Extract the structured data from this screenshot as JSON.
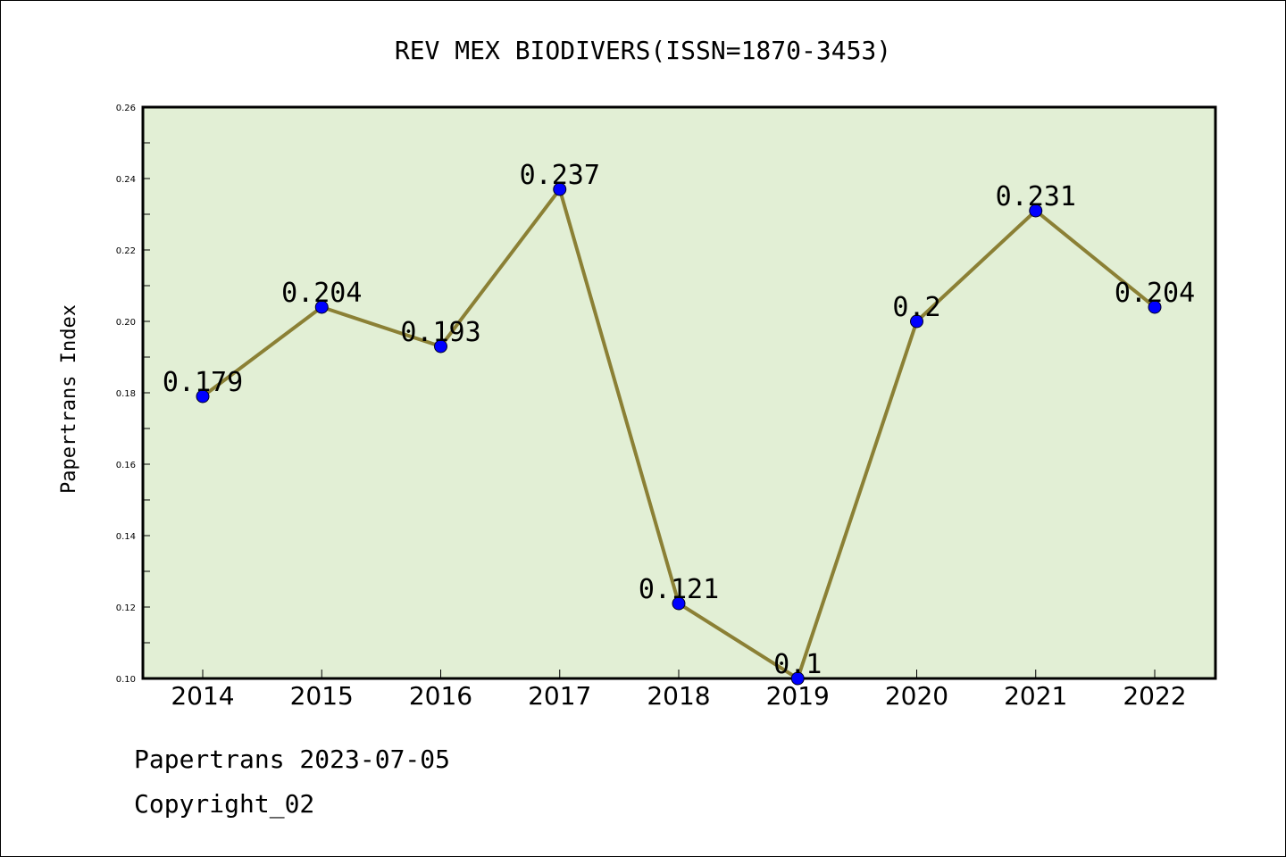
{
  "chart_data": {
    "type": "line",
    "title": "REV MEX BIODIVERS(ISSN=1870-3453)",
    "ylabel": "Papertrans Index",
    "xlabel": "",
    "categories": [
      "2014",
      "2015",
      "2016",
      "2017",
      "2018",
      "2019",
      "2020",
      "2021",
      "2022"
    ],
    "values": [
      0.179,
      0.204,
      0.193,
      0.237,
      0.121,
      0.1,
      0.2,
      0.231,
      0.204
    ],
    "data_labels": [
      "0.179",
      "0.204",
      "0.193",
      "0.237",
      "0.121",
      "0.1",
      "0.2",
      "0.231",
      "0.204"
    ],
    "ylim": [
      0.1,
      0.26
    ],
    "yticks": [
      "0.10",
      "0.12",
      "0.14",
      "0.16",
      "0.18",
      "0.20",
      "0.22",
      "0.24",
      "0.26"
    ],
    "grid": false,
    "colors": {
      "plot_background": "#e2efd5",
      "line": "#8b8035",
      "marker": "#0000ff"
    }
  },
  "footer": {
    "date_line": "Papertrans 2023-07-05",
    "copyright": "Copyright_02"
  }
}
